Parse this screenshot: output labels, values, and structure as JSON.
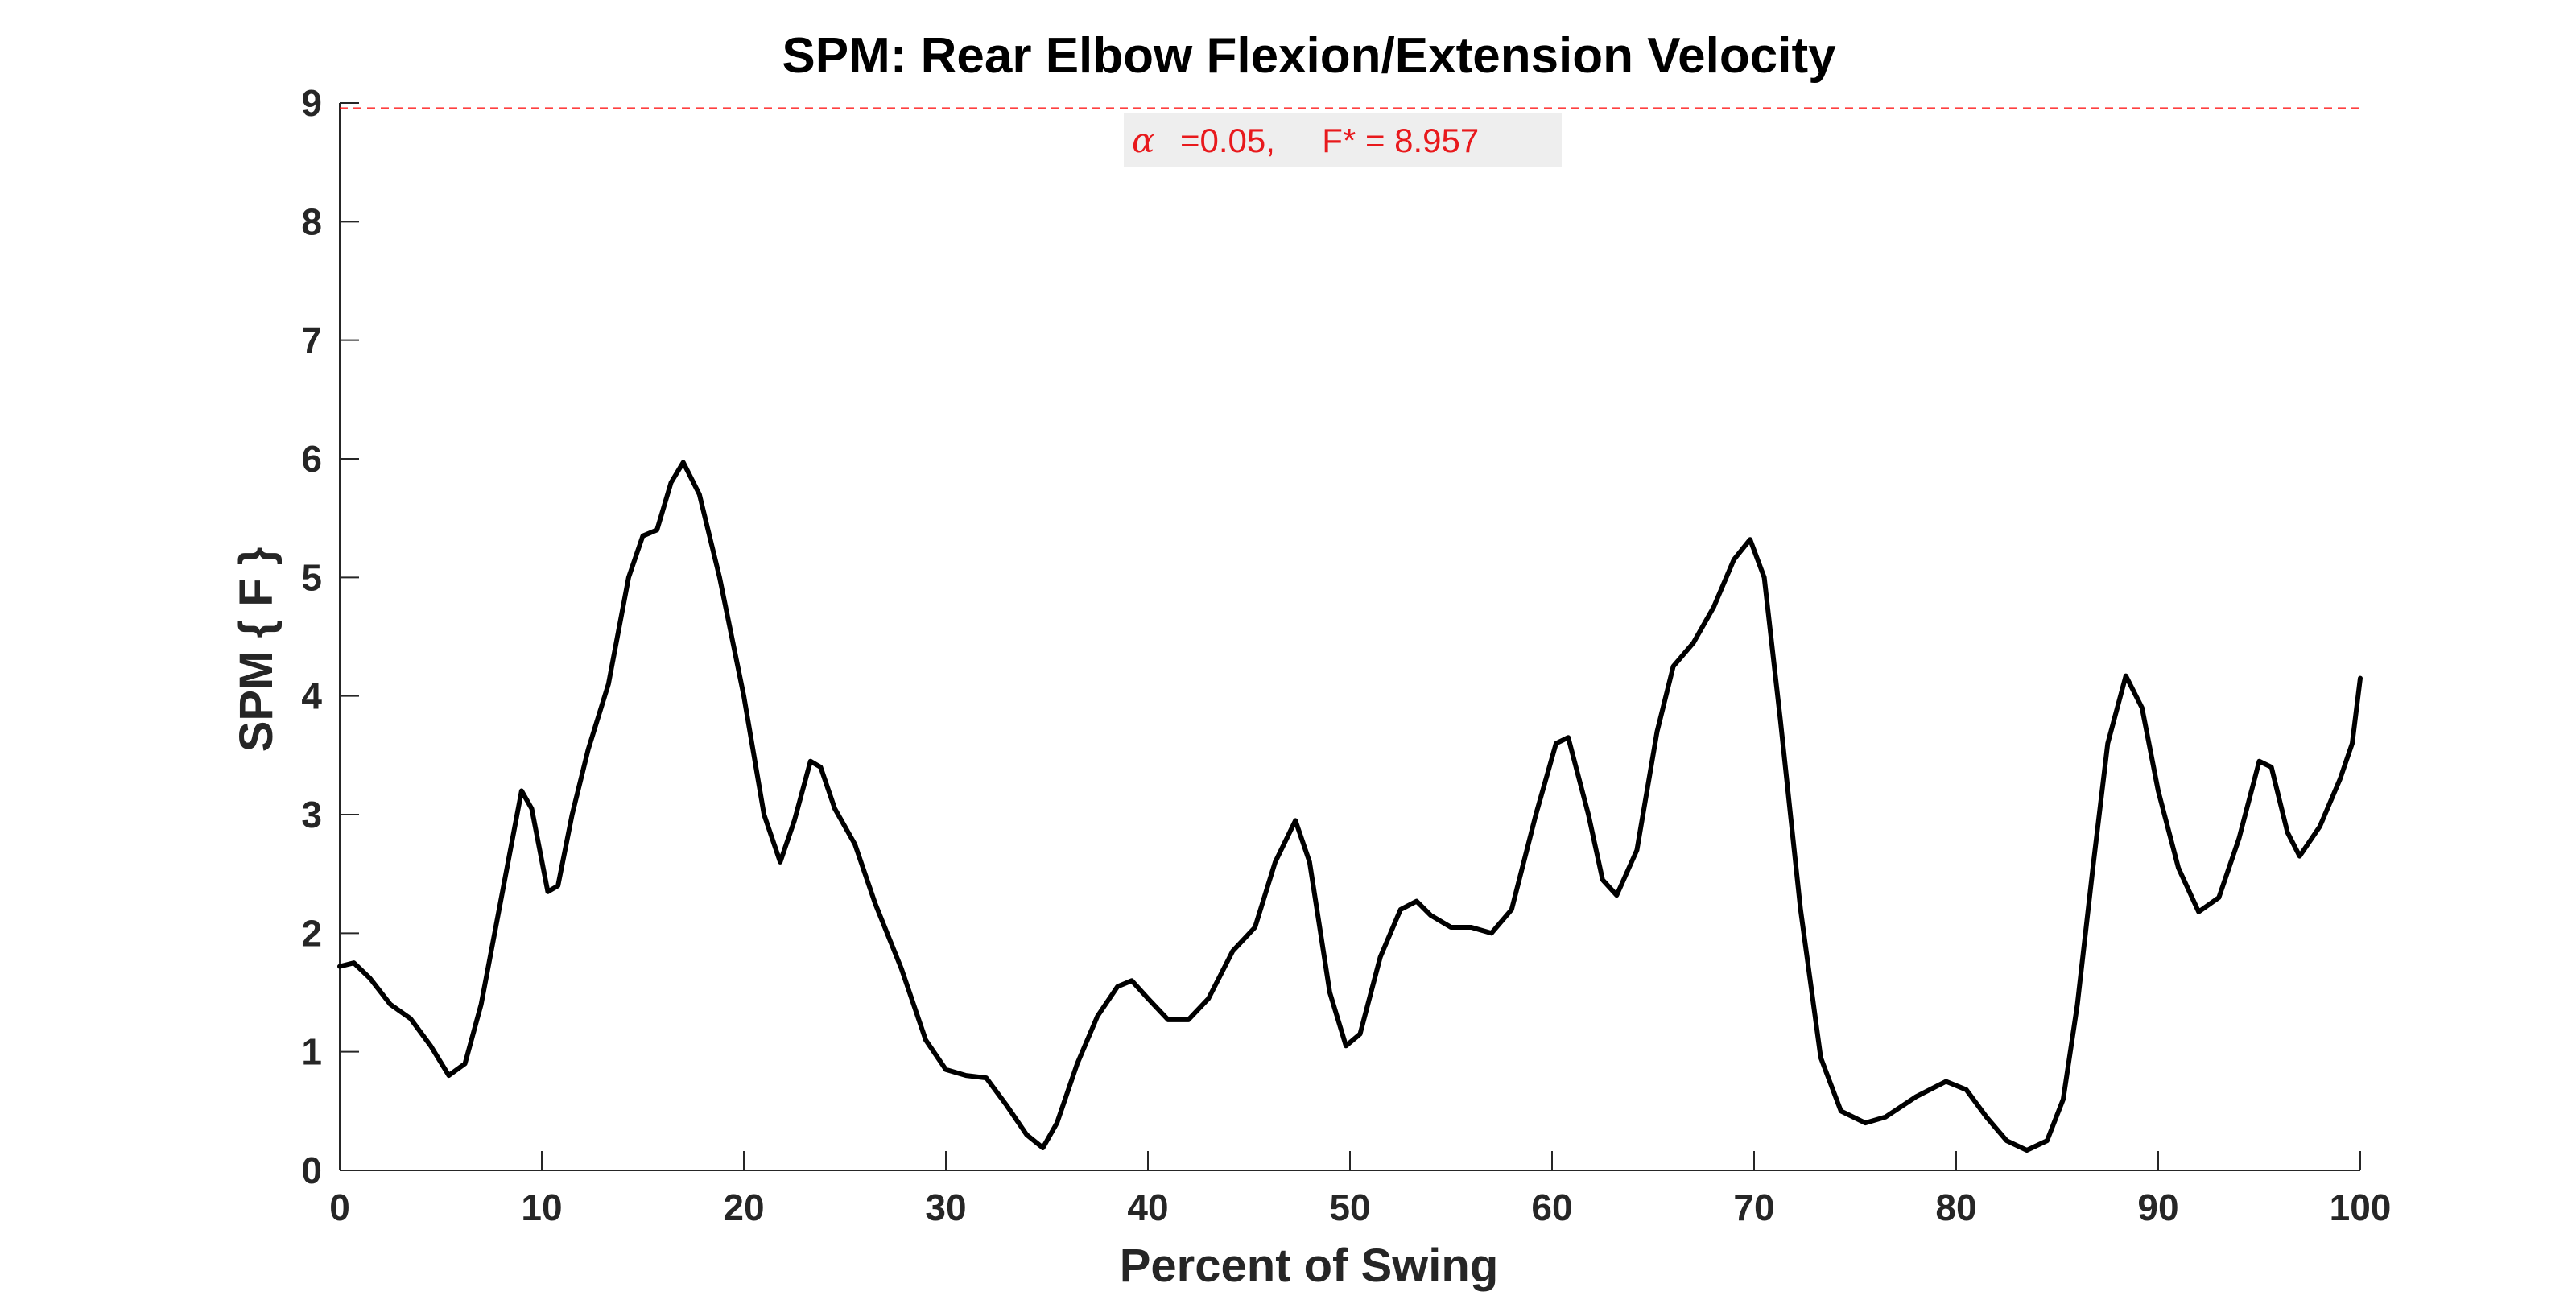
{
  "chart_data": {
    "type": "line",
    "title": "SPM: Rear Elbow Flexion/Extension Velocity",
    "xlabel": "Percent of Swing",
    "ylabel": "SPM { F }",
    "xlim": [
      0,
      100
    ],
    "ylim": [
      0,
      9
    ],
    "xticks": [
      "0",
      "10",
      "20",
      "30",
      "40",
      "50",
      "60",
      "70",
      "80",
      "90",
      "100"
    ],
    "yticks": [
      "0",
      "1",
      "2",
      "3",
      "4",
      "5",
      "6",
      "7",
      "8",
      "9"
    ],
    "grid": false,
    "threshold": {
      "value": 8.957,
      "alpha_symbol": "α",
      "label": "=0.05,     F* = 8.957",
      "color": "#ff0000",
      "style": "dashed"
    },
    "series": [
      {
        "color": "#000000",
        "points": [
          [
            0,
            1.72
          ],
          [
            0.7,
            1.75
          ],
          [
            1.5,
            1.62
          ],
          [
            2.5,
            1.4
          ],
          [
            3.5,
            1.28
          ],
          [
            4.5,
            1.05
          ],
          [
            5.4,
            0.8
          ],
          [
            6.2,
            0.9
          ],
          [
            7.0,
            1.4
          ],
          [
            8.0,
            2.3
          ],
          [
            9.0,
            3.2
          ],
          [
            9.5,
            3.05
          ],
          [
            10.3,
            2.35
          ],
          [
            10.8,
            2.4
          ],
          [
            11.5,
            3.0
          ],
          [
            12.3,
            3.55
          ],
          [
            13.3,
            4.1
          ],
          [
            14.3,
            5.0
          ],
          [
            15.0,
            5.35
          ],
          [
            15.7,
            5.4
          ],
          [
            16.4,
            5.8
          ],
          [
            17.0,
            5.97
          ],
          [
            17.8,
            5.7
          ],
          [
            18.8,
            5.0
          ],
          [
            20.0,
            4.0
          ],
          [
            21.0,
            3.0
          ],
          [
            21.8,
            2.6
          ],
          [
            22.5,
            2.95
          ],
          [
            23.3,
            3.45
          ],
          [
            23.8,
            3.4
          ],
          [
            24.5,
            3.05
          ],
          [
            25.5,
            2.75
          ],
          [
            26.5,
            2.25
          ],
          [
            27.8,
            1.7
          ],
          [
            29.0,
            1.1
          ],
          [
            30.0,
            0.85
          ],
          [
            31.0,
            0.8
          ],
          [
            32.0,
            0.78
          ],
          [
            33.0,
            0.55
          ],
          [
            34.0,
            0.3
          ],
          [
            34.8,
            0.19
          ],
          [
            35.5,
            0.4
          ],
          [
            36.5,
            0.9
          ],
          [
            37.5,
            1.3
          ],
          [
            38.5,
            1.55
          ],
          [
            39.2,
            1.6
          ],
          [
            40.0,
            1.45
          ],
          [
            41.0,
            1.27
          ],
          [
            42.0,
            1.27
          ],
          [
            43.0,
            1.45
          ],
          [
            44.2,
            1.85
          ],
          [
            45.3,
            2.05
          ],
          [
            46.3,
            2.6
          ],
          [
            47.3,
            2.95
          ],
          [
            48.0,
            2.6
          ],
          [
            49.0,
            1.5
          ],
          [
            49.8,
            1.05
          ],
          [
            50.5,
            1.15
          ],
          [
            51.5,
            1.8
          ],
          [
            52.5,
            2.2
          ],
          [
            53.3,
            2.27
          ],
          [
            54.0,
            2.15
          ],
          [
            55.0,
            2.05
          ],
          [
            56.0,
            2.05
          ],
          [
            57.0,
            2.0
          ],
          [
            58.0,
            2.2
          ],
          [
            59.2,
            3.0
          ],
          [
            60.2,
            3.6
          ],
          [
            60.8,
            3.65
          ],
          [
            61.8,
            3.0
          ],
          [
            62.5,
            2.45
          ],
          [
            63.2,
            2.32
          ],
          [
            64.2,
            2.7
          ],
          [
            65.2,
            3.7
          ],
          [
            66.0,
            4.25
          ],
          [
            67.0,
            4.45
          ],
          [
            68.0,
            4.75
          ],
          [
            69.0,
            5.15
          ],
          [
            69.8,
            5.32
          ],
          [
            70.5,
            5.0
          ],
          [
            71.3,
            3.8
          ],
          [
            72.3,
            2.2
          ],
          [
            73.3,
            0.95
          ],
          [
            74.3,
            0.5
          ],
          [
            75.5,
            0.4
          ],
          [
            76.5,
            0.45
          ],
          [
            78.0,
            0.62
          ],
          [
            79.5,
            0.75
          ],
          [
            80.5,
            0.68
          ],
          [
            81.5,
            0.45
          ],
          [
            82.5,
            0.25
          ],
          [
            83.5,
            0.17
          ],
          [
            84.5,
            0.25
          ],
          [
            85.3,
            0.6
          ],
          [
            86.0,
            1.4
          ],
          [
            86.8,
            2.6
          ],
          [
            87.5,
            3.6
          ],
          [
            88.4,
            4.17
          ],
          [
            89.2,
            3.9
          ],
          [
            90.0,
            3.2
          ],
          [
            91.0,
            2.55
          ],
          [
            92.0,
            2.18
          ],
          [
            93.0,
            2.3
          ],
          [
            94.0,
            2.8
          ],
          [
            95.0,
            3.45
          ],
          [
            95.6,
            3.4
          ],
          [
            96.4,
            2.85
          ],
          [
            97.0,
            2.65
          ],
          [
            98.0,
            2.9
          ],
          [
            99.0,
            3.3
          ],
          [
            99.6,
            3.6
          ],
          [
            100.0,
            4.15
          ]
        ]
      }
    ]
  }
}
